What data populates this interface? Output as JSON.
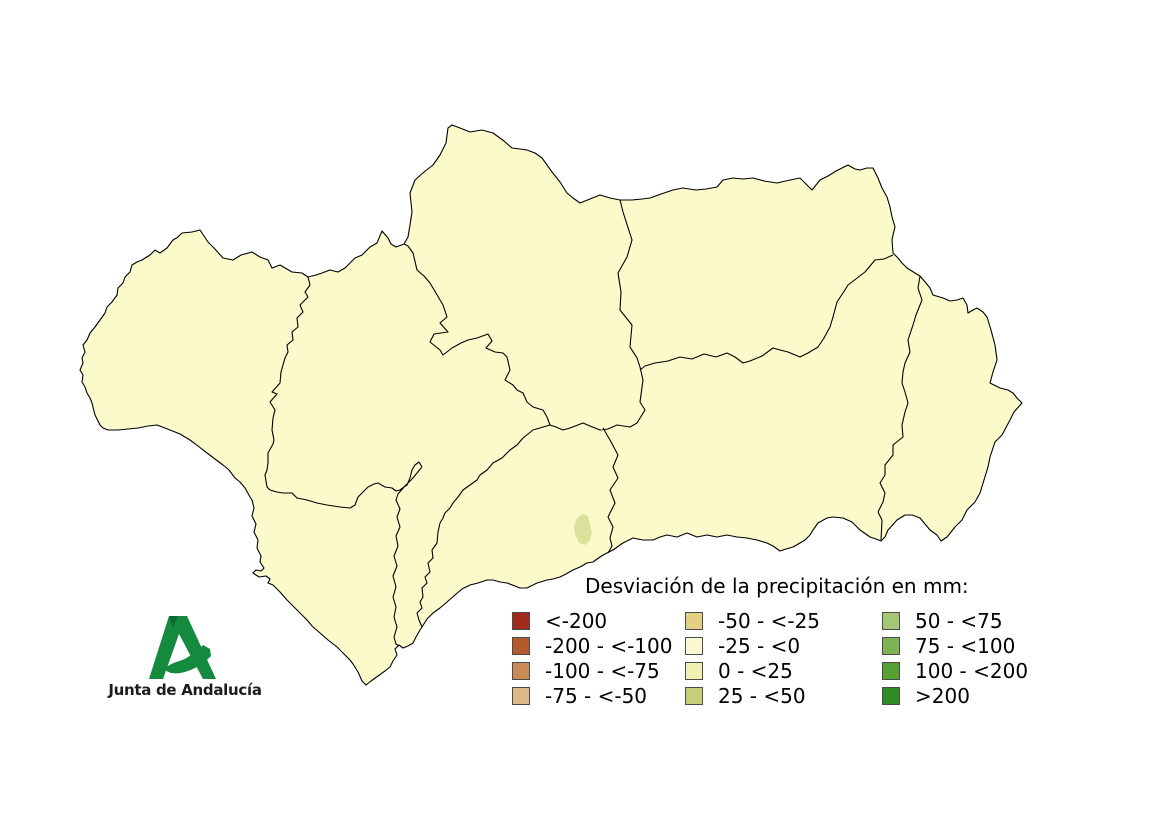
{
  "map": {
    "name": "Andalucía",
    "fill_color": "#FBFACA",
    "border_color": "#000000",
    "highlight_patch_color": "#D9E29B"
  },
  "legend": {
    "title": "Desviación de la precipitación en mm:",
    "columns": [
      {
        "items": [
          {
            "label": "<-200",
            "color": "#9F2C1B"
          },
          {
            "label": "-200 - <-100",
            "color": "#B35B2D"
          },
          {
            "label": "-100 - <-75",
            "color": "#C78C55"
          },
          {
            "label": "-75 - <-50",
            "color": "#DCB888"
          }
        ]
      },
      {
        "items": [
          {
            "label": "-50 - <-25",
            "color": "#E5CE85"
          },
          {
            "label": "-25 - <0",
            "color": "#FAF8D3"
          },
          {
            "label": "0 - <25",
            "color": "#F0F1B1"
          },
          {
            "label": "25 - <50",
            "color": "#C6CE78"
          }
        ]
      },
      {
        "items": [
          {
            "label": "50 - <75",
            "color": "#A3C873"
          },
          {
            "label": "75 - <100",
            "color": "#7DB356"
          },
          {
            "label": "100 - <200",
            "color": "#55A033"
          },
          {
            "label": ">200",
            "color": "#2F8A27"
          }
        ]
      }
    ]
  },
  "logo": {
    "text": "Junta de Andalucía",
    "color": "#148A3F",
    "color_dark": "#0B6B30",
    "text_color": "#1C1C1C"
  }
}
